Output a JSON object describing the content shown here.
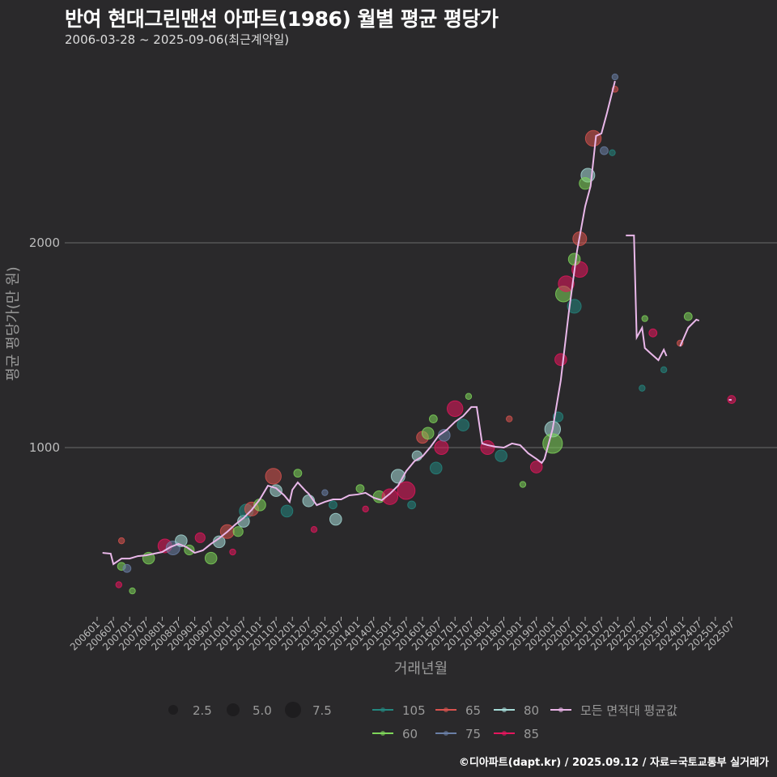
{
  "title": "반여 현대그린맨션 아파트(1986) 월별 평균 평당가",
  "subtitle": "2006-03-28 ~ 2025-09-06(최근계약일)",
  "caption": "©디아파트(dapt.kr) / 2025.09.12 / 자료=국토교통부 실거래가",
  "chart_data": {
    "type": "scatter+line",
    "xlabel": "거래년월",
    "ylabel": "평균 평당가(만 원)",
    "ylim": [
      200,
      2800
    ],
    "yticks": [
      1000,
      2000
    ],
    "xticks": [
      "200601",
      "200607",
      "200701",
      "200707",
      "200801",
      "200807",
      "200901",
      "200907",
      "201001",
      "201007",
      "201101",
      "201107",
      "201201",
      "201207",
      "201301",
      "201307",
      "201401",
      "201407",
      "201501",
      "201507",
      "201601",
      "201607",
      "201701",
      "201707",
      "201801",
      "201807",
      "201901",
      "201907",
      "202001",
      "202007",
      "202101",
      "202107",
      "202201",
      "202207",
      "202301",
      "202307",
      "202401",
      "202407",
      "202501",
      "202507"
    ],
    "grid": "horizontal-major",
    "size_legend": {
      "values": [
        "2.5",
        "5.0",
        "7.5"
      ]
    },
    "series_legend": [
      {
        "name": "105",
        "color": "#23877f"
      },
      {
        "name": "65",
        "color": "#d9534f"
      },
      {
        "name": "80",
        "color": "#a6dcd8"
      },
      {
        "name": "모든 면적대 평균값",
        "color": "#e9b3e6"
      },
      {
        "name": "60",
        "color": "#7ed65a"
      },
      {
        "name": "75",
        "color": "#6a7fa6"
      },
      {
        "name": "85",
        "color": "#e5155d"
      }
    ],
    "average_line": [
      [
        [
          200603,
          486
        ],
        [
          200606,
          482
        ],
        [
          200607,
          431
        ],
        [
          200610,
          458
        ],
        [
          200701,
          458
        ],
        [
          200704,
          470
        ],
        [
          200707,
          474
        ],
        [
          200801,
          490
        ],
        [
          200804,
          514
        ],
        [
          200807,
          530
        ],
        [
          200810,
          514
        ],
        [
          200901,
          486
        ],
        [
          200904,
          498
        ],
        [
          200907,
          530
        ],
        [
          200910,
          557
        ],
        [
          201001,
          589
        ],
        [
          201004,
          625
        ],
        [
          201007,
          656
        ],
        [
          201010,
          696
        ],
        [
          201101,
          747
        ],
        [
          201104,
          814
        ],
        [
          201107,
          802
        ],
        [
          201110,
          767
        ],
        [
          201112,
          735
        ],
        [
          201201,
          794
        ],
        [
          201203,
          830
        ],
        [
          201206,
          787
        ],
        [
          201207,
          775
        ],
        [
          201210,
          719
        ],
        [
          201301,
          735
        ],
        [
          201304,
          747
        ],
        [
          201307,
          747
        ],
        [
          201310,
          767
        ],
        [
          201401,
          771
        ],
        [
          201404,
          779
        ],
        [
          201407,
          755
        ],
        [
          201410,
          743
        ],
        [
          201501,
          775
        ],
        [
          201504,
          814
        ],
        [
          201507,
          885
        ],
        [
          201510,
          933
        ],
        [
          201601,
          957
        ],
        [
          201604,
          1004
        ],
        [
          201607,
          1059
        ],
        [
          201610,
          1087
        ],
        [
          201701,
          1126
        ],
        [
          201704,
          1154
        ],
        [
          201707,
          1198
        ],
        [
          201709,
          1198
        ],
        [
          201711,
          1020
        ],
        [
          201801,
          1012
        ],
        [
          201804,
          1004
        ],
        [
          201807,
          1000
        ],
        [
          201810,
          1020
        ],
        [
          201901,
          1012
        ],
        [
          201904,
          972
        ],
        [
          201907,
          945
        ],
        [
          201909,
          925
        ],
        [
          201910,
          945
        ],
        [
          202001,
          1091
        ],
        [
          202004,
          1328
        ],
        [
          202007,
          1664
        ],
        [
          202010,
          1960
        ],
        [
          202101,
          2178
        ],
        [
          202103,
          2277
        ],
        [
          202105,
          2522
        ],
        [
          202107,
          2534
        ],
        [
          202109,
          2632
        ],
        [
          202112,
          2790
        ]
      ],
      [
        [
          202204,
          2036
        ],
        [
          202207,
          2036
        ],
        [
          202208,
          1538
        ],
        [
          202210,
          1585
        ],
        [
          202211,
          1486
        ],
        [
          202301,
          1462
        ],
        [
          202304,
          1427
        ],
        [
          202306,
          1478
        ],
        [
          202307,
          1447
        ]
      ],
      [
        [
          202312,
          1494
        ],
        [
          202403,
          1585
        ],
        [
          202406,
          1625
        ],
        [
          202407,
          1620
        ]
      ],
      [
        [
          202506,
          1233
        ],
        [
          202507,
          1233
        ]
      ]
    ],
    "points": [
      [
        "60",
        200610,
        420,
        2
      ],
      [
        "85",
        200609,
        330,
        1
      ],
      [
        "75",
        200612,
        410,
        2
      ],
      [
        "60",
        200702,
        300,
        1
      ],
      [
        "65",
        200610,
        545,
        1
      ],
      [
        "60",
        200708,
        460,
        4
      ],
      [
        "85",
        200802,
        520,
        5
      ],
      [
        "75",
        200805,
        510,
        5
      ],
      [
        "80",
        200808,
        545,
        4
      ],
      [
        "60",
        200811,
        500,
        3
      ],
      [
        "85",
        200903,
        560,
        3
      ],
      [
        "60",
        200907,
        460,
        4
      ],
      [
        "80",
        200910,
        540,
        4
      ],
      [
        "65",
        201001,
        590,
        5
      ],
      [
        "85",
        201003,
        490,
        1
      ],
      [
        "60",
        201005,
        590,
        3
      ],
      [
        "80",
        201007,
        640,
        4
      ],
      [
        "105",
        201008,
        690,
        5
      ],
      [
        "65",
        201010,
        700,
        5
      ],
      [
        "60",
        201101,
        720,
        4
      ],
      [
        "65",
        201106,
        860,
        6
      ],
      [
        "80",
        201107,
        790,
        4
      ],
      [
        "105",
        201111,
        690,
        4
      ],
      [
        "60",
        201203,
        875,
        2
      ],
      [
        "85",
        201209,
        600,
        1
      ],
      [
        "80",
        201207,
        740,
        4
      ],
      [
        "75",
        201301,
        780,
        1
      ],
      [
        "105",
        201304,
        720,
        2
      ],
      [
        "80",
        201305,
        650,
        4
      ],
      [
        "60",
        201402,
        800,
        2
      ],
      [
        "85",
        201404,
        700,
        1
      ],
      [
        "60",
        201409,
        760,
        4
      ],
      [
        "85",
        201501,
        760,
        6
      ],
      [
        "80",
        201504,
        860,
        5
      ],
      [
        "85",
        201507,
        790,
        7
      ],
      [
        "105",
        201509,
        720,
        2
      ],
      [
        "80",
        201511,
        960,
        3
      ],
      [
        "65",
        201601,
        1050,
        4
      ],
      [
        "60",
        201603,
        1070,
        4
      ],
      [
        "105",
        201606,
        900,
        4
      ],
      [
        "85",
        201608,
        1000,
        5
      ],
      [
        "60",
        201605,
        1140,
        2
      ],
      [
        "75",
        201609,
        1060,
        4
      ],
      [
        "85",
        201701,
        1190,
        6
      ],
      [
        "105",
        201704,
        1110,
        4
      ],
      [
        "60",
        201706,
        1250,
        1
      ],
      [
        "85",
        201801,
        1000,
        5
      ],
      [
        "105",
        201806,
        960,
        4
      ],
      [
        "65",
        201809,
        1140,
        1
      ],
      [
        "60",
        201902,
        820,
        1
      ],
      [
        "85",
        201907,
        905,
        4
      ],
      [
        "80",
        202001,
        1090,
        6
      ],
      [
        "60",
        202001,
        1020,
        8
      ],
      [
        "105",
        202003,
        1150,
        3
      ],
      [
        "85",
        202004,
        1430,
        4
      ],
      [
        "60",
        202005,
        1750,
        6
      ],
      [
        "85",
        202006,
        1800,
        6
      ],
      [
        "105",
        202009,
        1690,
        5
      ],
      [
        "85",
        202011,
        1870,
        6
      ],
      [
        "60",
        202009,
        1920,
        4
      ],
      [
        "65",
        202011,
        2020,
        5
      ],
      [
        "80",
        202102,
        2330,
        5
      ],
      [
        "60",
        202101,
        2290,
        4
      ],
      [
        "65",
        202104,
        2510,
        6
      ],
      [
        "75",
        202108,
        2450,
        2
      ],
      [
        "105",
        202111,
        2440,
        1
      ],
      [
        "75",
        202112,
        2810,
        1
      ],
      [
        "65",
        202112,
        2750,
        1
      ],
      [
        "60",
        202211,
        1630,
        1
      ],
      [
        "105",
        202210,
        1290,
        1
      ],
      [
        "105",
        202306,
        1380,
        1
      ],
      [
        "85",
        202302,
        1560,
        2
      ],
      [
        "60",
        202403,
        1640,
        2
      ],
      [
        "65",
        202312,
        1510,
        1
      ],
      [
        "85",
        202507,
        1235,
        2
      ]
    ]
  }
}
